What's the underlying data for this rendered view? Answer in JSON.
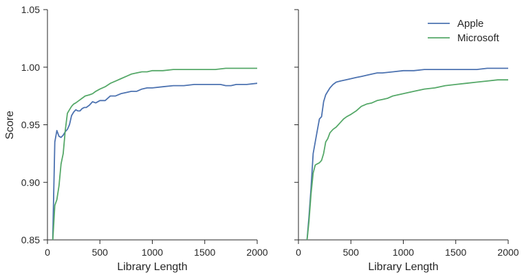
{
  "chart_data": {
    "type": "line",
    "ylabel": "Score",
    "ylim": [
      0.85,
      1.05
    ],
    "yticks": [
      "0.85",
      "0.90",
      "0.95",
      "1.00",
      "1.05"
    ],
    "xlim": [
      0,
      2000
    ],
    "xticks": [
      "0",
      "500",
      "1000",
      "1500",
      "2000"
    ],
    "shared_y": true,
    "legend": {
      "placement": "top-right",
      "panel": 1
    },
    "series_colors": {
      "Apple": "#4c72b0",
      "Microsoft": "#55a868"
    },
    "panels": [
      {
        "xlabel": "Library Length",
        "series": [
          {
            "name": "Apple",
            "x": [
              50,
              70,
              90,
              110,
              130,
              150,
              170,
              190,
              210,
              230,
              250,
              270,
              290,
              310,
              330,
              350,
              370,
              400,
              430,
              460,
              500,
              550,
              600,
              650,
              700,
              750,
              800,
              850,
              900,
              950,
              1000,
              1100,
              1200,
              1300,
              1400,
              1500,
              1550,
              1600,
              1650,
              1700,
              1750,
              1800,
              1900,
              2000
            ],
            "y": [
              0.848,
              0.935,
              0.945,
              0.94,
              0.939,
              0.941,
              0.944,
              0.946,
              0.95,
              0.958,
              0.961,
              0.963,
              0.962,
              0.962,
              0.964,
              0.965,
              0.965,
              0.967,
              0.97,
              0.969,
              0.971,
              0.971,
              0.975,
              0.975,
              0.977,
              0.978,
              0.979,
              0.979,
              0.981,
              0.982,
              0.982,
              0.983,
              0.984,
              0.984,
              0.985,
              0.985,
              0.985,
              0.985,
              0.985,
              0.984,
              0.984,
              0.985,
              0.985,
              0.986
            ]
          },
          {
            "name": "Microsoft",
            "x": [
              50,
              70,
              90,
              110,
              130,
              150,
              170,
              190,
              210,
              230,
              250,
              270,
              300,
              330,
              360,
              400,
              430,
              460,
              500,
              550,
              600,
              650,
              700,
              750,
              800,
              850,
              900,
              950,
              1000,
              1100,
              1200,
              1300,
              1400,
              1500,
              1600,
              1700,
              1800,
              1900,
              2000
            ],
            "y": [
              0.848,
              0.88,
              0.885,
              0.897,
              0.916,
              0.925,
              0.945,
              0.96,
              0.963,
              0.966,
              0.968,
              0.969,
              0.971,
              0.973,
              0.975,
              0.976,
              0.977,
              0.979,
              0.981,
              0.983,
              0.986,
              0.988,
              0.99,
              0.992,
              0.994,
              0.995,
              0.996,
              0.996,
              0.997,
              0.997,
              0.998,
              0.998,
              0.998,
              0.998,
              0.998,
              0.999,
              0.999,
              0.999,
              0.999
            ]
          }
        ]
      },
      {
        "xlabel": "Library Length",
        "series": [
          {
            "name": "Apple",
            "x": [
              80,
              100,
              120,
              140,
              160,
              180,
              200,
              220,
              240,
              260,
              280,
              300,
              330,
              360,
              400,
              450,
              500,
              550,
              600,
              650,
              700,
              750,
              800,
              900,
              1000,
              1100,
              1200,
              1300,
              1400,
              1500,
              1600,
              1700,
              1800,
              1900,
              2000
            ],
            "y": [
              0.848,
              0.87,
              0.895,
              0.925,
              0.935,
              0.945,
              0.955,
              0.957,
              0.97,
              0.976,
              0.979,
              0.982,
              0.985,
              0.987,
              0.988,
              0.989,
              0.99,
              0.991,
              0.992,
              0.993,
              0.994,
              0.995,
              0.995,
              0.996,
              0.997,
              0.997,
              0.998,
              0.998,
              0.998,
              0.998,
              0.998,
              0.998,
              0.999,
              0.999,
              0.999
            ]
          },
          {
            "name": "Microsoft",
            "x": [
              80,
              100,
              120,
              140,
              160,
              180,
              200,
              220,
              240,
              260,
              280,
              300,
              330,
              360,
              400,
              430,
              460,
              500,
              550,
              600,
              650,
              700,
              750,
              800,
              850,
              900,
              1000,
              1100,
              1200,
              1300,
              1400,
              1500,
              1600,
              1700,
              1800,
              1900,
              2000
            ],
            "y": [
              0.848,
              0.866,
              0.89,
              0.908,
              0.915,
              0.916,
              0.917,
              0.919,
              0.925,
              0.935,
              0.938,
              0.943,
              0.946,
              0.948,
              0.952,
              0.955,
              0.957,
              0.959,
              0.962,
              0.966,
              0.968,
              0.969,
              0.971,
              0.972,
              0.973,
              0.975,
              0.977,
              0.979,
              0.981,
              0.982,
              0.984,
              0.985,
              0.986,
              0.987,
              0.988,
              0.989,
              0.989
            ]
          }
        ]
      }
    ]
  }
}
